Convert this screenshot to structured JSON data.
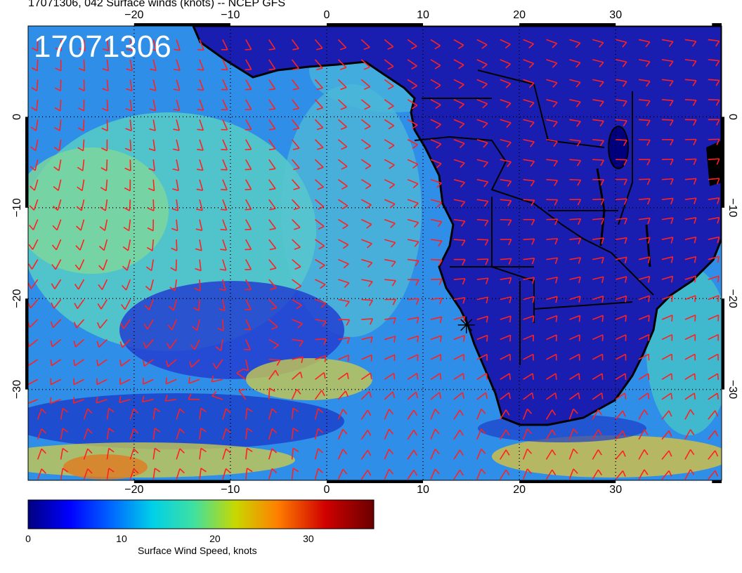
{
  "title": "17071306, 042 Surface winds (knots) -- NCEP GFS",
  "stamp": "17071306",
  "map": {
    "lon_range": [
      -31,
      41
    ],
    "lat_range": [
      -40,
      10
    ],
    "lon_ticks": [
      -20,
      -10,
      0,
      10,
      20,
      30
    ],
    "lat_ticks": [
      0,
      -10,
      -20,
      -30
    ],
    "lon_labels": [
      "−20",
      "−10",
      "0",
      "10",
      "20",
      "30"
    ],
    "lat_labels": [
      "0",
      "−10",
      "−20",
      "−30"
    ],
    "graticule": "dotted",
    "marker": {
      "lon": 14.5,
      "lat": -22.9,
      "symbol": "star"
    }
  },
  "colorbar": {
    "title": "Surface Wind Speed, knots",
    "range": [
      0,
      37
    ],
    "ticks": [
      0,
      10,
      20,
      30
    ],
    "tick_labels": [
      "0",
      "10",
      "20",
      "30"
    ],
    "colors": [
      "#00007f",
      "#0000ff",
      "#0080ff",
      "#00e0e0",
      "#40e0a0",
      "#c8d800",
      "#ff8000",
      "#d00000",
      "#7f0000"
    ]
  },
  "barb_color": "#ff2020",
  "coast_color": "#000000"
}
